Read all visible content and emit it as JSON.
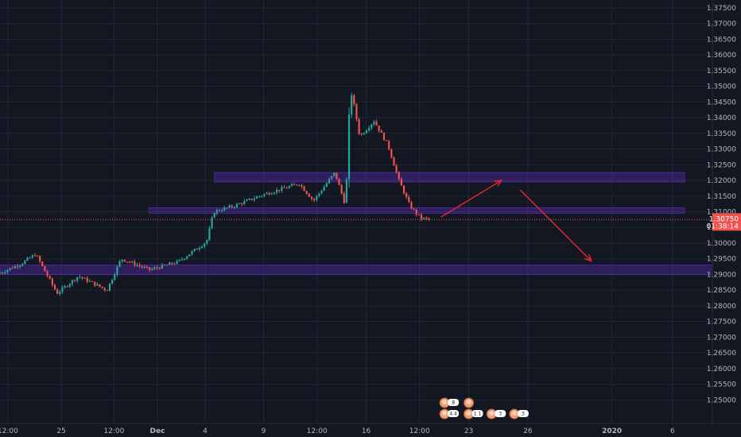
{
  "chart_data": {
    "type": "candlestick",
    "title": "",
    "ylim": [
      1.2425,
      1.3775
    ],
    "y_ticks": [
      "1.37500",
      "1.37000",
      "1.36500",
      "1.36000",
      "1.35500",
      "1.35000",
      "1.34500",
      "1.34000",
      "1.33500",
      "1.33000",
      "1.32500",
      "1.32000",
      "1.31500",
      "1.31000",
      "1.30500",
      "1.30000",
      "1.29500",
      "1.29000",
      "1.28500",
      "1.28000",
      "1.27500",
      "1.27000",
      "1.26500",
      "1.26000",
      "1.25500",
      "1.25000"
    ],
    "x_ticks": [
      "12:00",
      "25",
      "12:00",
      "Dec",
      "4",
      "9",
      "12:00",
      "16",
      "12:00",
      "23",
      "26",
      "2020",
      "6"
    ],
    "x_tick_bold": [
      false,
      false,
      false,
      true,
      false,
      false,
      false,
      false,
      false,
      false,
      false,
      true,
      false
    ],
    "x_domain_index": [
      0,
      100
    ],
    "x_tick_index": [
      1.1,
      8.6,
      16.0,
      22.1,
      28.8,
      37.0,
      44.5,
      51.4,
      58.9,
      65.8,
      74.1,
      85.9,
      94.4
    ],
    "last_price": {
      "value": 1.3075,
      "label": "1.30750",
      "countdown": "01:38:14"
    },
    "colors": {
      "up": "#26a69a",
      "down": "#ef5350",
      "zone": "#6a2fd6",
      "arrow": "#e0262b",
      "background": "#131722",
      "grid": "#232734",
      "text": "#b2b5be"
    },
    "zones": [
      {
        "name": "resistance-zone-upper",
        "x_start": 30.1,
        "x_end": 96.1,
        "y_top": 1.3225,
        "y_bottom": 1.3195
      },
      {
        "name": "support-zone-middle",
        "x_start": 20.9,
        "x_end": 96.1,
        "y_top": 1.3113,
        "y_bottom": 1.3095
      },
      {
        "name": "support-zone-lower",
        "x_start": 0,
        "x_end": 100,
        "y_top": 1.293,
        "y_bottom": 1.29
      }
    ],
    "arrows": [
      {
        "name": "bullish-projection-arrow",
        "x1": 61.9,
        "y1": 1.3083,
        "x2": 70.4,
        "y2": 1.32
      },
      {
        "name": "bearish-projection-arrow",
        "x1": 73.0,
        "y1": 1.317,
        "x2": 83.0,
        "y2": 1.2943
      }
    ],
    "candles_ohlc_keypoints": [
      [
        0,
        1.2905
      ],
      [
        3,
        1.2935
      ],
      [
        5,
        1.2965
      ],
      [
        8,
        1.284
      ],
      [
        11,
        1.2895
      ],
      [
        15,
        1.285
      ],
      [
        17,
        1.295
      ],
      [
        21,
        1.2915
      ],
      [
        25,
        1.294
      ],
      [
        29,
        1.3005
      ],
      [
        30,
        1.31
      ],
      [
        33,
        1.312
      ],
      [
        37,
        1.3155
      ],
      [
        42,
        1.319
      ],
      [
        44,
        1.3135
      ],
      [
        47,
        1.3225
      ],
      [
        48.5,
        1.312
      ],
      [
        49.2,
        1.35
      ],
      [
        50.5,
        1.334
      ],
      [
        52.5,
        1.339
      ],
      [
        54.5,
        1.331
      ],
      [
        56,
        1.32
      ],
      [
        57.5,
        1.312
      ],
      [
        59,
        1.308
      ],
      [
        60.5,
        1.3075
      ]
    ],
    "events": [
      {
        "name": "event-icon-1",
        "x": 62.4,
        "y_slot": 1,
        "badge": "4 4"
      },
      {
        "name": "event-icon-2",
        "x": 65.8,
        "y_slot": 1,
        "badge": "1 1"
      },
      {
        "name": "event-icon-3",
        "x": 69.0,
        "y_slot": 2,
        "badge": "3"
      },
      {
        "name": "event-icon-4",
        "x": 72.2,
        "y_slot": 2,
        "badge": "3"
      },
      {
        "name": "event-icon-5",
        "x": 62.4,
        "y_slot": 0,
        "badge": "8"
      },
      {
        "name": "event-icon-6",
        "x": 65.8,
        "y_slot": 0,
        "badge": ""
      }
    ]
  }
}
